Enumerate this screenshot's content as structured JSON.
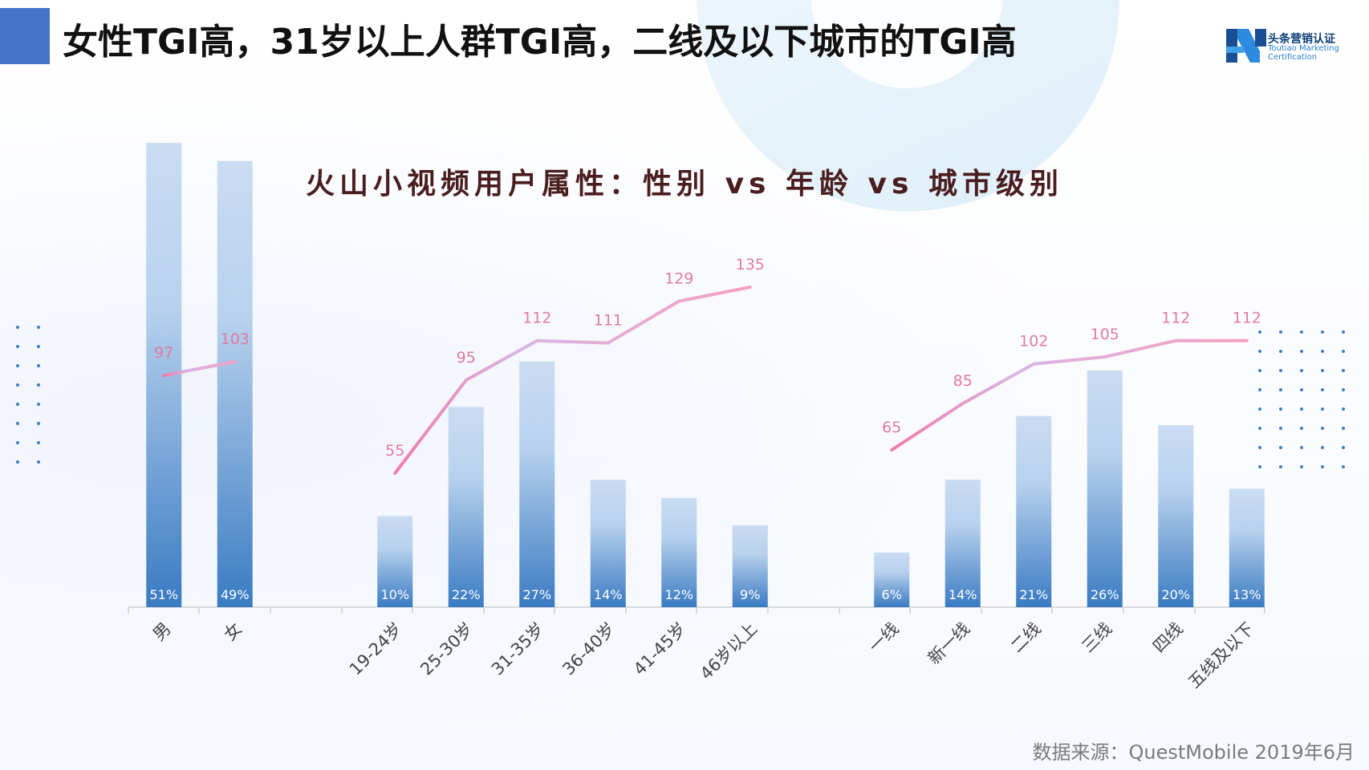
{
  "header": {
    "title": "女性TGI高，31岁以上人群TGI高，二线及以下城市的TGI高",
    "logo_text_cn": "头条营销认证",
    "logo_text_en": "Toutiao Marketing Certification"
  },
  "source": "数据来源：QuestMobile 2019年6月",
  "colors": {
    "accent": "#4472c4",
    "bar_top": "#c8dbf1",
    "bar_bottom": "#3f7fc4",
    "line": "#f28fb5",
    "label": "#e07ca0"
  },
  "chart_data": {
    "type": "bar",
    "title": "火山小视频用户属性：性别 vs 年龄 vs 城市级别",
    "groups": [
      {
        "name": "",
        "categories": [
          "男",
          "女"
        ],
        "share_labels": [
          "51%",
          "49%"
        ],
        "share_values": [
          51,
          49
        ],
        "tgi": [
          97,
          103
        ]
      },
      {
        "name": "",
        "categories": [
          "19-24岁",
          "25-30岁",
          "31-35岁",
          "36-40岁",
          "41-45岁",
          "46岁以上"
        ],
        "share_labels": [
          "10%",
          "22%",
          "27%",
          "14%",
          "12%",
          "9%"
        ],
        "share_values": [
          10,
          22,
          27,
          14,
          12,
          9
        ],
        "tgi": [
          55,
          95,
          112,
          111,
          129,
          135
        ]
      },
      {
        "name": "",
        "categories": [
          "一线",
          "新一线",
          "二线",
          "三线",
          "四线",
          "五线及以下"
        ],
        "share_labels": [
          "6%",
          "14%",
          "21%",
          "26%",
          "20%",
          "13%"
        ],
        "share_values": [
          6,
          14,
          21,
          26,
          20,
          13
        ],
        "tgi": [
          65,
          85,
          102,
          105,
          112,
          112
        ]
      }
    ],
    "legend": "none",
    "grid": false
  }
}
